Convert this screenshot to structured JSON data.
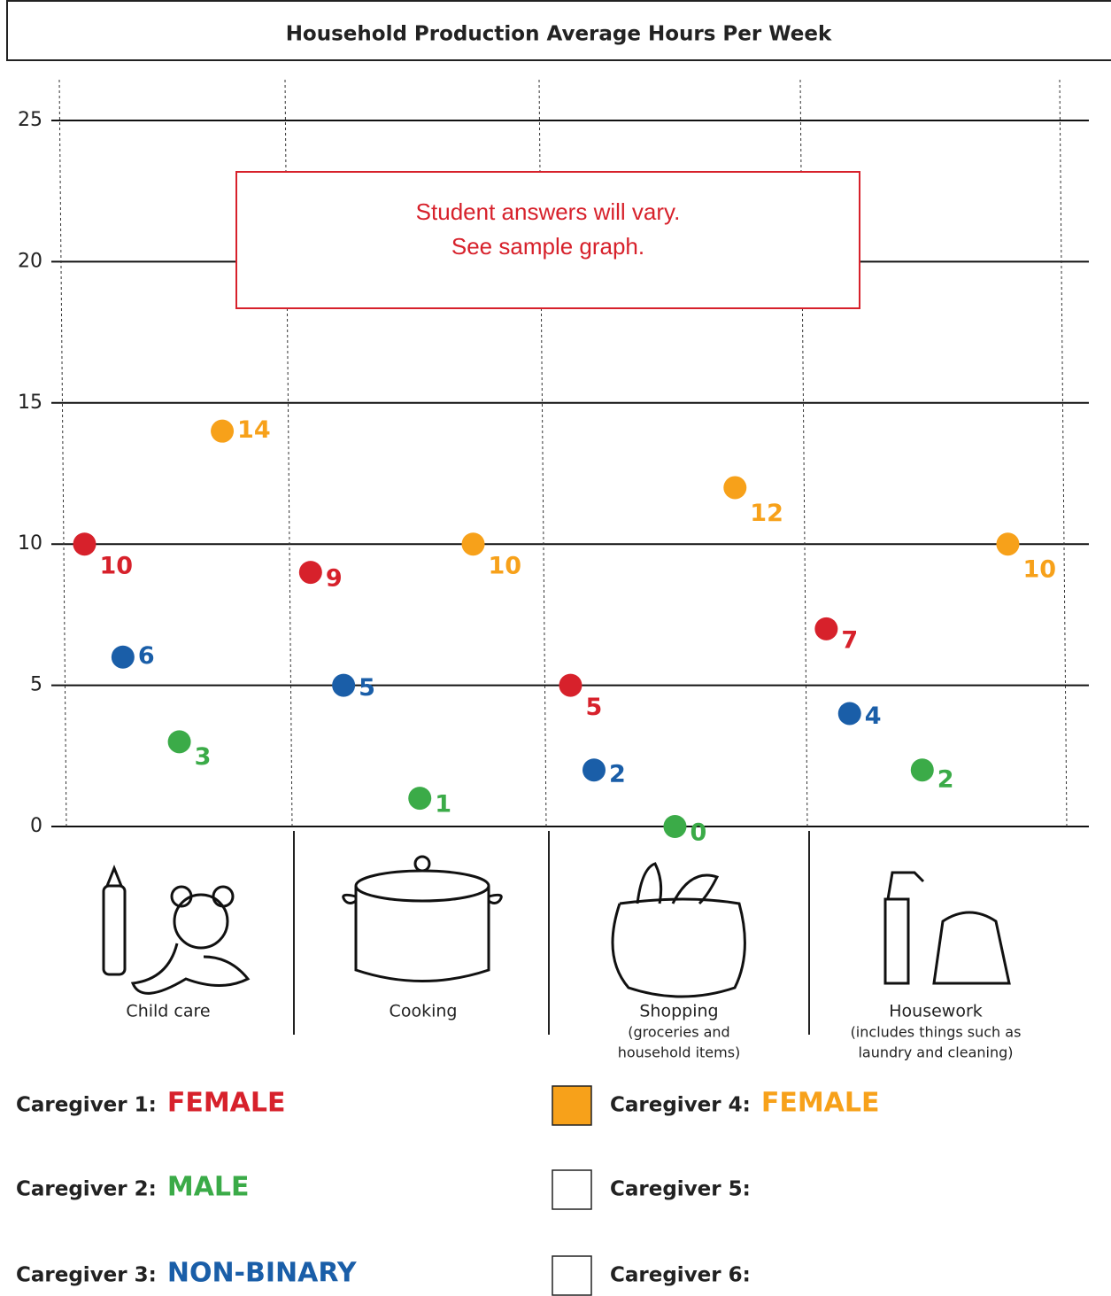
{
  "chart_data": {
    "type": "scatter",
    "title": "Household Production Average Hours Per Week",
    "annotation": [
      "Student answers will vary.",
      "See sample graph."
    ],
    "categories": [
      "Child care",
      "Cooking",
      "Shopping",
      "Housework"
    ],
    "category_notes": [
      [],
      [],
      [
        "(groceries and",
        "household items)"
      ],
      [
        "(includes things such as",
        "laundry and cleaning)"
      ]
    ],
    "ylim": [
      0,
      25
    ],
    "yticks": [
      0,
      5,
      10,
      15,
      20,
      25
    ],
    "grid": true,
    "series": [
      {
        "name": "Caregiver 1:",
        "label": "FEMALE",
        "color": "#d7212b",
        "values": [
          10,
          9,
          5,
          7
        ]
      },
      {
        "name": "Caregiver 2:",
        "label": "MALE",
        "color": "#3bab48",
        "values": [
          3,
          1,
          0,
          2
        ]
      },
      {
        "name": "Caregiver 3:",
        "label": "NON-BINARY",
        "color": "#1a5ea8",
        "values": [
          6,
          5,
          2,
          4
        ]
      },
      {
        "name": "Caregiver 4:",
        "label": "FEMALE",
        "color": "#f7a11a",
        "values": [
          14,
          10,
          12,
          10
        ]
      }
    ],
    "empty_legend": [
      "Caregiver 5:",
      "Caregiver 6:"
    ]
  }
}
